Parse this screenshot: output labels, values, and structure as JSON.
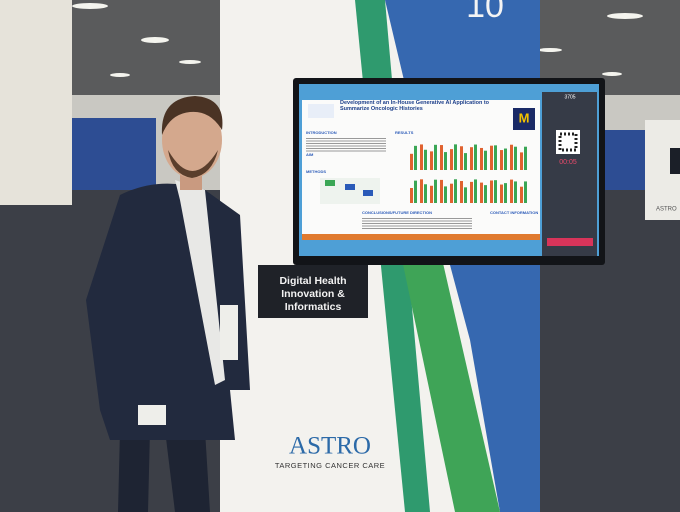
{
  "booth_number": "10",
  "sign": {
    "lines": [
      "Digital Health",
      "Innovation &",
      "Informatics"
    ]
  },
  "logo": {
    "name": "ASTRO",
    "tagline": "TARGETING CANCER CARE"
  },
  "poster": {
    "title": "Development of an In-House Generative AI Application to Summarize Oncologic Histories",
    "sections": [
      "INTRODUCTION",
      "AIM",
      "METHODS",
      "RESULTS",
      "CONCLUSIONS/FUTURE DIRECTION",
      "CONTACT INFORMATION"
    ],
    "poster_id": "3705",
    "timer": "00:05"
  },
  "background_sign": "ASTRO"
}
